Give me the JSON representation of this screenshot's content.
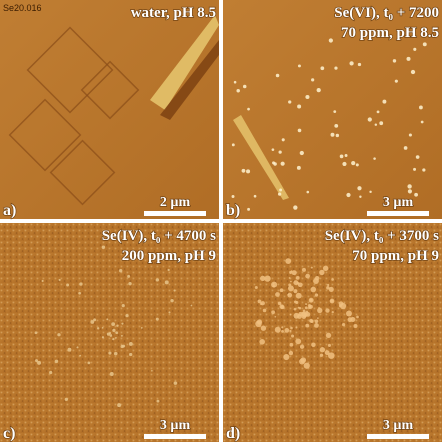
{
  "corner_id": "Se20.016",
  "panels": [
    {
      "label": "a)",
      "title_lines": [
        "water, pH 8.5"
      ],
      "scale": "2 µm"
    },
    {
      "label": "b)",
      "title_lines": [
        "Se(VI), t₀ + 7200",
        "70 ppm, pH 8.5"
      ],
      "scale": "3 µm"
    },
    {
      "label": "c)",
      "title_lines": [
        "Se(IV), t₀ + 4700 s",
        "200 ppm, pH 9"
      ],
      "scale": "3 µm"
    },
    {
      "label": "d)",
      "title_lines": [
        "Se(IV), t₀ + 3700 s",
        "70 ppm, pH 9"
      ],
      "scale": "3 µm"
    }
  ]
}
